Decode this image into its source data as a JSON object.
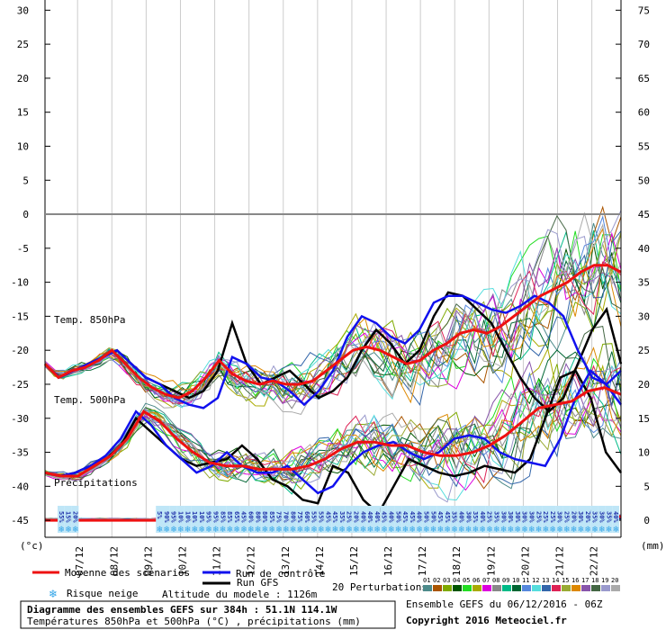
{
  "chart_data": {
    "type": "line",
    "title": "Diagramme des ensembles GEFS sur 384h : 51.1N 114.1W",
    "subtitle": "Températures 850hPa et 500hPa (°C) , précipitations (mm)",
    "left_axis_unit": "(°c)",
    "right_axis_unit": "(mm)",
    "left_axis_ticks": [
      30,
      25,
      20,
      15,
      10,
      5,
      0,
      -5,
      -10,
      -15,
      -20,
      -25,
      -30,
      -35,
      -40,
      -45
    ],
    "right_axis_ticks": [
      75,
      70,
      65,
      60,
      55,
      50,
      45,
      40,
      35,
      30,
      25,
      20,
      15,
      10,
      5,
      0
    ],
    "ylim": [
      -47.5,
      31.5
    ],
    "x_dates": [
      "07/12",
      "08/12",
      "09/12",
      "10/12",
      "11/12",
      "12/12",
      "13/12",
      "14/12",
      "15/12",
      "16/12",
      "17/12",
      "18/12",
      "19/12",
      "20/12",
      "21/12",
      "22/12"
    ],
    "zero_line": 0,
    "section_labels": {
      "t850": "Temp. 850hPa",
      "t500": "Temp. 500hPa",
      "precip": "Précipitations"
    },
    "snow_risk": [
      "55%",
      "15%",
      "20%",
      "",
      "",
      "",
      "",
      "",
      "",
      "",
      "",
      "",
      "",
      "",
      "5%",
      "90%",
      "95%",
      "10%",
      "10%",
      "10%",
      "10%",
      "95%",
      "95%",
      "85%",
      "85%",
      "65%",
      "45%",
      "60%",
      "80%",
      "80%",
      "85%",
      "75%",
      "70%",
      "80%",
      "75%",
      "60%",
      "55%",
      "55%",
      "45%",
      "45%",
      "35%",
      "25%",
      "20%",
      "40%",
      "40%",
      "40%",
      "45%",
      "40%",
      "50%",
      "45%",
      "45%",
      "40%",
      "50%",
      "50%",
      "45%",
      "45%",
      "35%",
      "40%",
      "30%",
      "35%",
      "40%",
      "25%",
      "35%",
      "30%",
      "30%",
      "30%",
      "30%",
      "30%",
      "25%",
      "25%",
      "25%",
      "30%",
      "25%",
      "20%",
      "30%",
      "20%",
      "35%",
      "30%",
      "35%",
      "40%"
    ],
    "series": [
      {
        "name": "Moyenne des scénarios",
        "color": "#ee1111",
        "t850": [
          -22,
          -24,
          -23,
          -22.5,
          -21.5,
          -20,
          -22,
          -24,
          -25.5,
          -26.5,
          -27,
          -26,
          -24,
          -21.5,
          -23.5,
          -24.5,
          -25,
          -24.5,
          -25,
          -25,
          -24.5,
          -23,
          -21.5,
          -20,
          -19.5,
          -20,
          -21,
          -22,
          -21.5,
          -20,
          -19,
          -17.5,
          -17,
          -17.5,
          -16.5,
          -15,
          -13.5,
          -12,
          -11,
          -10,
          -8.5,
          -7.5,
          -7.5,
          -8.5
        ],
        "t500": [
          -38,
          -38.5,
          -38.5,
          -37,
          -35.5,
          -33,
          -29,
          -30.5,
          -33,
          -35,
          -36.5,
          -37,
          -37,
          -37.5,
          -37.5,
          -37.5,
          -37,
          -36,
          -34.5,
          -33.5,
          -33.5,
          -34,
          -34,
          -35,
          -35.5,
          -35.5,
          -35,
          -34,
          -32.5,
          -30.5,
          -28.5,
          -28,
          -27.5,
          -26,
          -25.5,
          -26.5
        ],
        "precip": [
          0,
          0,
          0,
          0,
          0,
          0,
          0,
          0,
          0,
          0,
          0,
          0,
          0,
          0,
          0,
          0,
          0,
          0,
          0,
          0,
          0,
          0,
          0,
          0,
          0,
          0,
          0,
          0,
          0,
          0.2,
          0.5,
          0.8,
          1.0,
          0.5
        ]
      },
      {
        "name": "Run de contrôle",
        "color": "#1111ee",
        "t850": [
          -22,
          -24,
          -23,
          -22,
          -21,
          -20,
          -22,
          -24,
          -25,
          -27,
          -28,
          -28.5,
          -27,
          -21,
          -22,
          -24,
          -24.5,
          -26,
          -28,
          -26,
          -23,
          -18,
          -15,
          -16,
          -18,
          -19,
          -17,
          -13,
          -12,
          -12,
          -13,
          -14,
          -14.5,
          -13.5,
          -12,
          -13,
          -15,
          -20,
          -24,
          -25,
          -23
        ],
        "t500": [
          -38,
          -38.5,
          -38,
          -37,
          -35.5,
          -33,
          -29,
          -31,
          -34,
          -36,
          -38,
          -37,
          -35,
          -37,
          -38,
          -38,
          -37,
          -39,
          -41,
          -40,
          -37,
          -35,
          -34,
          -33.5,
          -35,
          -36,
          -35,
          -33,
          -32.5,
          -33,
          -35,
          -36,
          -36.5,
          -37,
          -33,
          -27,
          -23,
          -25,
          -28
        ],
        "precip": [
          0,
          0,
          0,
          0,
          0,
          0,
          0,
          0,
          0,
          0,
          0,
          0,
          0,
          0,
          0,
          0,
          0,
          0,
          0,
          0,
          0,
          0,
          0,
          0,
          0,
          0,
          0,
          0,
          0,
          0,
          0.3,
          1.4,
          0.8,
          0.4
        ]
      },
      {
        "name": "Run GFS",
        "color": "#000000",
        "t850": [
          -22,
          -24,
          -23,
          -22,
          -21,
          -20,
          -22,
          -24,
          -25,
          -26,
          -27,
          -26,
          -23,
          -16,
          -22,
          -25,
          -24,
          -23,
          -25,
          -27,
          -26,
          -24,
          -20,
          -17,
          -19,
          -22,
          -20,
          -15,
          -11.5,
          -12,
          -14,
          -16,
          -20,
          -24,
          -27,
          -29,
          -27,
          -22,
          -17,
          -14,
          -22
        ],
        "t500": [
          -38,
          -38.5,
          -38,
          -37,
          -36,
          -34,
          -30,
          -32,
          -34,
          -36,
          -37,
          -36.5,
          -36,
          -34,
          -36,
          -39,
          -40,
          -42,
          -42.5,
          -37,
          -38,
          -42,
          -44,
          -40,
          -36,
          -37,
          -38,
          -38.5,
          -38,
          -37,
          -37.5,
          -38,
          -36,
          -30,
          -24,
          -23,
          -27,
          -35,
          -38
        ],
        "precip": [
          0,
          0,
          0,
          0,
          0,
          0,
          0,
          0,
          0,
          0,
          0,
          0,
          0,
          0,
          0,
          0,
          0,
          0,
          0,
          0,
          0,
          0,
          0,
          0,
          0,
          0,
          0,
          0,
          0,
          0.2,
          0.6,
          1.5,
          1.0,
          0.3
        ]
      }
    ],
    "ensemble_seed": 7
  },
  "legend": {
    "mean_label": "Moyenne des scénarios",
    "control_label": "Run de contrôle",
    "gfs_label": "Run GFS",
    "perturbations_label": "20 Perturbations",
    "snow_label": "Risque neige",
    "altitude_label": "Altitude du modele : 1126m",
    "perturbation_ids": [
      "01",
      "02",
      "03",
      "04",
      "05",
      "06",
      "07",
      "08",
      "09",
      "10",
      "11",
      "12",
      "13",
      "14",
      "15",
      "16",
      "17",
      "18",
      "19",
      "20"
    ],
    "perturbation_colors": [
      "#4c8a8a",
      "#aa5500",
      "#7faa00",
      "#005500",
      "#22dd22",
      "#aaaa00",
      "#dd00dd",
      "#888888",
      "#00bb88",
      "#006633",
      "#5588dd",
      "#55dddd",
      "#3366aa",
      "#dd2255",
      "#99aa33",
      "#dd8800",
      "#8855aa",
      "#446644",
      "#9999cc",
      "#aaaaaa"
    ]
  },
  "footer": {
    "ensemble_info": "Ensemble GEFS du 06/12/2016 - 06Z",
    "copyright": "Copyright 2016 Meteociel.fr"
  }
}
